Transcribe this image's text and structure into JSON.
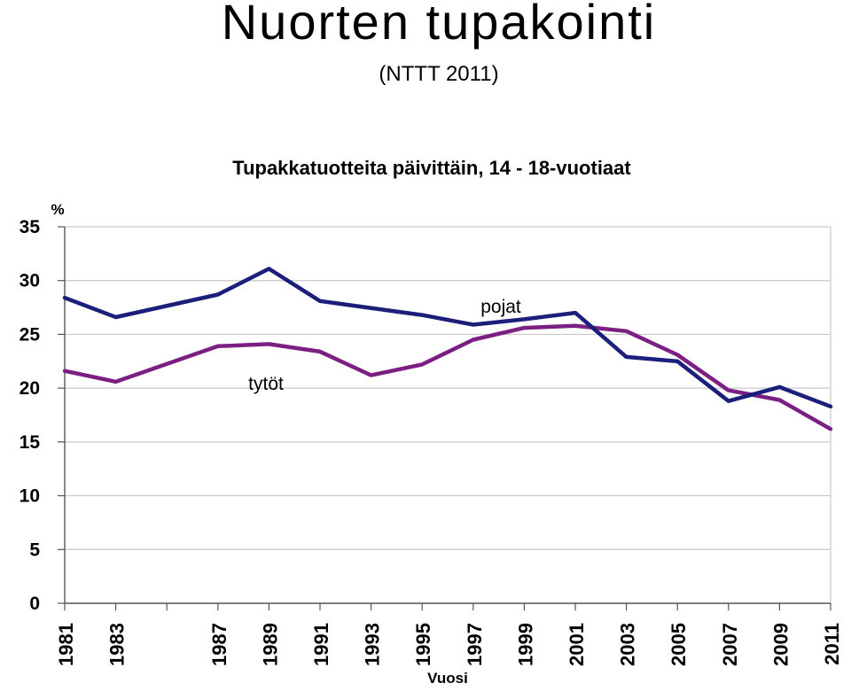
{
  "slide": {
    "title": "Nuorten tupakointi",
    "subtitle": "(NTTT 2011)"
  },
  "chart_data": {
    "type": "line",
    "title": "Tupakkatuotteita päivittäin, 14 - 18-vuotiaat",
    "ylabel": "%",
    "xlabel": "Vuosi",
    "ylim": [
      0,
      35
    ],
    "yticks": [
      0,
      5,
      10,
      15,
      20,
      25,
      30,
      35
    ],
    "xlim": [
      1981,
      2011
    ],
    "xticks": [
      1981,
      1983,
      1987,
      1989,
      1991,
      1993,
      1995,
      1997,
      1999,
      2001,
      2003,
      2005,
      2007,
      2009,
      2011
    ],
    "xtick_marks": [
      1981,
      1983,
      1985,
      1987,
      1989,
      1991,
      1993,
      1995,
      1997,
      1999,
      2001,
      2003,
      2005,
      2007,
      2009,
      2011
    ],
    "grid": true,
    "series": [
      {
        "name": "pojat",
        "color": "#1b1f7a",
        "x": [
          1981,
          1983,
          1987,
          1989,
          1991,
          1995,
          1997,
          1999,
          2001,
          2003,
          2005,
          2007,
          2009,
          2011
        ],
        "values": [
          28.4,
          26.6,
          28.7,
          31.1,
          28.1,
          26.8,
          25.9,
          26.4,
          27.0,
          22.9,
          22.5,
          18.8,
          20.1,
          18.3
        ]
      },
      {
        "name": "tytöt",
        "color": "#7b1f82",
        "x": [
          1981,
          1983,
          1987,
          1989,
          1991,
          1993,
          1995,
          1997,
          1999,
          2001,
          2003,
          2005,
          2007,
          2009,
          2011
        ],
        "values": [
          21.6,
          20.6,
          23.9,
          24.1,
          23.4,
          21.2,
          22.2,
          24.5,
          25.6,
          25.8,
          25.3,
          23.1,
          19.8,
          18.9,
          16.2
        ]
      }
    ]
  }
}
